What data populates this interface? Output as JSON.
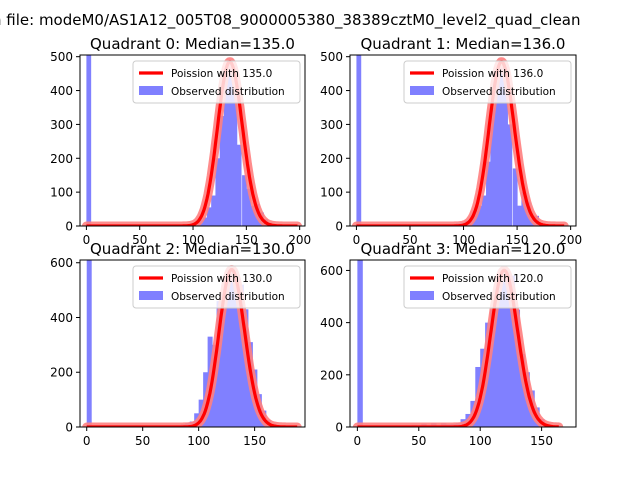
{
  "figure": {
    "suptitle": "n file: modeM0/AS1A12_005T08_9000005380_38389cztM0_level2_quad_clean"
  },
  "chart_data": [
    {
      "type": "bar",
      "title": "Quadrant 0: Median=135.0",
      "xlim": [
        -6,
        205
      ],
      "ylim": [
        0,
        505
      ],
      "xticks": [
        "0",
        "50",
        "100",
        "150",
        "200"
      ],
      "yticks": [
        "0",
        "100",
        "200",
        "300",
        "400",
        "500"
      ],
      "legend": [
        "Poission with 135.0",
        "Observed distribution"
      ],
      "legend_position": "upper right",
      "colors": {
        "hist": "#8080ff",
        "curve": "#ff0000",
        "curve_halo": "#ff8080"
      },
      "poisson_mean": 135.0,
      "poisson_peak": 485,
      "bin_width": 4.1,
      "hist": {
        "x": [
          0,
          85,
          89,
          93,
          97,
          101,
          105,
          109,
          113,
          117,
          121,
          125,
          129,
          133,
          137,
          141,
          146,
          150,
          154,
          158,
          162,
          166,
          170,
          174,
          178,
          182,
          186,
          190,
          194
        ],
        "counts": [
          505,
          4,
          5,
          6,
          8,
          10,
          18,
          25,
          55,
          90,
          200,
          325,
          440,
          478,
          400,
          240,
          150,
          110,
          60,
          65,
          40,
          20,
          10,
          6,
          4,
          3,
          2,
          2,
          1
        ]
      }
    },
    {
      "type": "bar",
      "title": "Quadrant 1: Median=136.0",
      "xlim": [
        -6,
        205
      ],
      "ylim": [
        0,
        505
      ],
      "xticks": [
        "0",
        "50",
        "100",
        "150",
        "200"
      ],
      "yticks": [
        "0",
        "100",
        "200",
        "300",
        "400",
        "500"
      ],
      "legend": [
        "Poission with 136.0",
        "Observed distribution"
      ],
      "legend_position": "upper right",
      "colors": {
        "hist": "#8080ff",
        "curve": "#ff0000",
        "curve_halo": "#ff8080"
      },
      "poisson_mean": 136.0,
      "poisson_peak": 485,
      "bin_width": 4.1,
      "hist": {
        "x": [
          0,
          85,
          89,
          93,
          97,
          101,
          105,
          109,
          113,
          117,
          121,
          125,
          129,
          133,
          137,
          141,
          146,
          150,
          154,
          158,
          162,
          166,
          170,
          174,
          178,
          182,
          186,
          190
        ],
        "counts": [
          505,
          4,
          5,
          8,
          10,
          15,
          20,
          45,
          60,
          90,
          190,
          350,
          460,
          470,
          440,
          300,
          170,
          60,
          100,
          70,
          20,
          30,
          10,
          5,
          3,
          2,
          2,
          1
        ]
      }
    },
    {
      "type": "bar",
      "title": "Quadrant 2: Median=130.0",
      "xlim": [
        -6,
        195
      ],
      "ylim": [
        0,
        610
      ],
      "xticks": [
        "0",
        "50",
        "100",
        "150"
      ],
      "yticks": [
        "0",
        "200",
        "400",
        "600"
      ],
      "legend": [
        "Poission with 130.0",
        "Observed distribution"
      ],
      "legend_position": "upper right",
      "colors": {
        "hist": "#8080ff",
        "curve": "#ff0000",
        "curve_halo": "#ff8080"
      },
      "poisson_mean": 130.0,
      "poisson_peak": 575,
      "bin_width": 4.1,
      "hist": {
        "x": [
          0,
          80,
          84,
          88,
          92,
          96,
          100,
          104,
          108,
          112,
          116,
          120,
          124,
          128,
          132,
          136,
          140,
          144,
          148,
          152,
          156,
          160,
          164,
          168,
          172,
          176,
          180,
          184
        ],
        "counts": [
          610,
          6,
          10,
          15,
          20,
          50,
          100,
          200,
          330,
          300,
          460,
          430,
          545,
          560,
          540,
          520,
          430,
          310,
          210,
          120,
          60,
          25,
          12,
          6,
          4,
          3,
          2,
          1
        ]
      }
    },
    {
      "type": "bar",
      "title": "Quadrant 3: Median=120.0",
      "xlim": [
        -6,
        178
      ],
      "ylim": [
        0,
        640
      ],
      "xticks": [
        "0",
        "50",
        "100",
        "150"
      ],
      "yticks": [
        "0",
        "200",
        "400",
        "600"
      ],
      "legend": [
        "Poission with 120.0",
        "Observed distribution"
      ],
      "legend_position": "upper right",
      "colors": {
        "hist": "#8080ff",
        "curve": "#ff0000",
        "curve_halo": "#ff8080"
      },
      "poisson_mean": 120.0,
      "poisson_peak": 600,
      "bin_width": 4.1,
      "hist": {
        "x": [
          0,
          36,
          44,
          52,
          60,
          68,
          72,
          76,
          80,
          84,
          88,
          92,
          96,
          100,
          104,
          108,
          112,
          116,
          120,
          124,
          128,
          132,
          136,
          140,
          144,
          148,
          152,
          156,
          160
        ],
        "counts": [
          640,
          4,
          8,
          12,
          14,
          14,
          10,
          12,
          15,
          30,
          50,
          100,
          230,
          300,
          400,
          450,
          525,
          580,
          595,
          580,
          450,
          280,
          210,
          140,
          75,
          30,
          12,
          5,
          3
        ]
      }
    }
  ]
}
